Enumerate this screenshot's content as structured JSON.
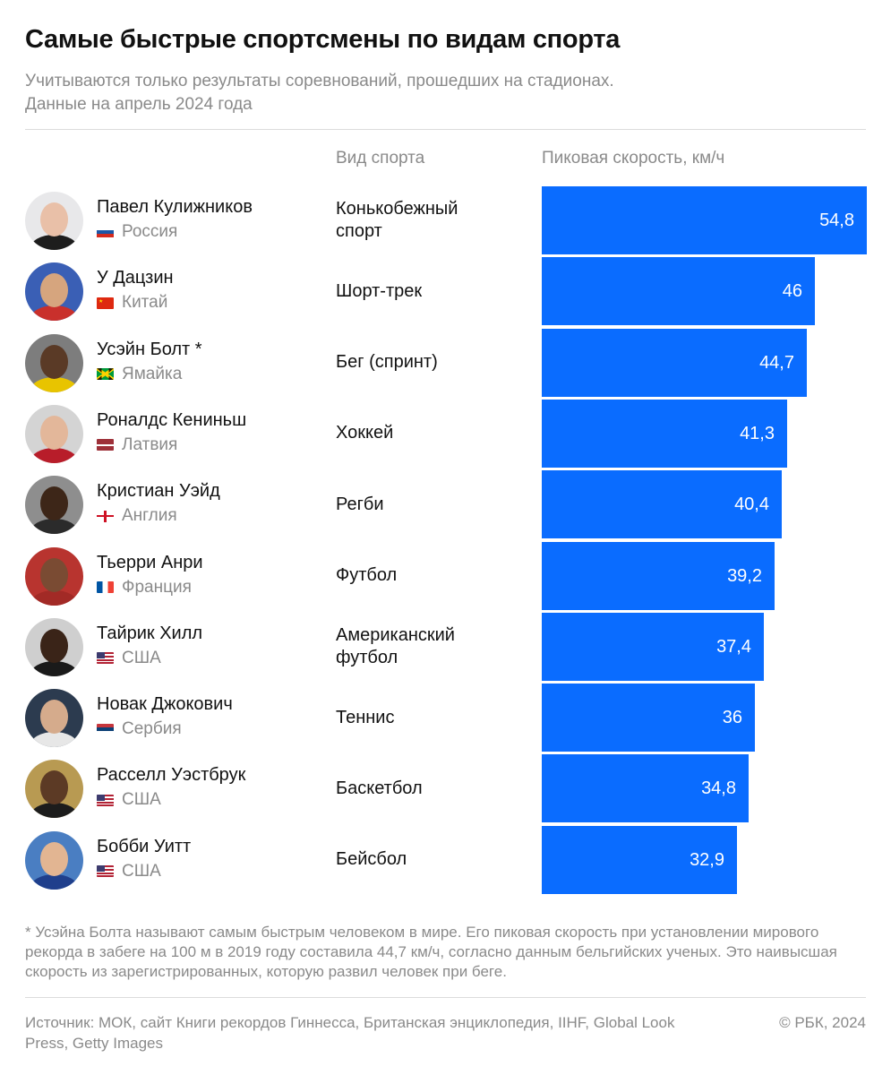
{
  "header": {
    "title": "Самые быстрые спортсмены по видам спорта",
    "subtitle_line1": "Учитываются только результаты соревнований, прошедших на стадионах.",
    "subtitle_line2": "Данные на апрель 2024 года"
  },
  "columns": {
    "sport": "Вид спорта",
    "speed": "Пиковая скорость, км/ч"
  },
  "colors": {
    "bar": "#0a6cff",
    "muted_text": "#8a8a8a"
  },
  "chart_data": {
    "type": "bar",
    "orientation": "horizontal",
    "title": "Самые быстрые спортсмены по видам спорта",
    "xlabel": "Пиковая скорость, км/ч",
    "categories": [
      "Павел Кулижников",
      "У Дацзин",
      "Усэйн Болт *",
      "Роналдс Кениньш",
      "Кристиан Уэйд",
      "Тьерри Анри",
      "Тайрик Хилл",
      "Новак Джокович",
      "Расселл Уэстбрук",
      "Бобби Уитт"
    ],
    "values": [
      54.8,
      46,
      44.7,
      41.3,
      40.4,
      39.2,
      37.4,
      36,
      34.8,
      32.9
    ],
    "value_labels": [
      "54,8",
      "46",
      "44,7",
      "41,3",
      "40,4",
      "39,2",
      "37,4",
      "36",
      "34,8",
      "32,9"
    ],
    "xlim": [
      0,
      54.8
    ],
    "grid": false
  },
  "athletes": [
    {
      "name": "Павел Кулижников",
      "country": "Россия",
      "flag": "russia-flag",
      "sport": "Конькобежный спорт",
      "speed_label": "54,8"
    },
    {
      "name": "У Дацзин",
      "country": "Китай",
      "flag": "china-flag",
      "sport": "Шорт-трек",
      "speed_label": "46"
    },
    {
      "name": "Усэйн Болт *",
      "country": "Ямайка",
      "flag": "jamaica-flag",
      "sport": "Бег (спринт)",
      "speed_label": "44,7"
    },
    {
      "name": "Роналдс Кениньш",
      "country": "Латвия",
      "flag": "latvia-flag",
      "sport": "Хоккей",
      "speed_label": "41,3"
    },
    {
      "name": "Кристиан Уэйд",
      "country": "Англия",
      "flag": "england-flag",
      "sport": "Регби",
      "speed_label": "40,4"
    },
    {
      "name": "Тьерри Анри",
      "country": "Франция",
      "flag": "france-flag",
      "sport": "Футбол",
      "speed_label": "39,2"
    },
    {
      "name": "Тайрик Хилл",
      "country": "США",
      "flag": "usa-flag",
      "sport": "Американский футбол",
      "speed_label": "37,4"
    },
    {
      "name": "Новак Джокович",
      "country": "Сербия",
      "flag": "serbia-flag",
      "sport": "Теннис",
      "speed_label": "36"
    },
    {
      "name": "Расселл Уэстбрук",
      "country": "США",
      "flag": "usa-flag",
      "sport": "Баскетбол",
      "speed_label": "34,8"
    },
    {
      "name": "Бобби Уитт",
      "country": "США",
      "flag": "usa-flag",
      "sport": "Бейсбол",
      "speed_label": "32,9"
    }
  ],
  "footnote": "* Усэйна Болта называют самым быстрым человеком в мире. Его пиковая скорость при установлении мирового рекорда в забеге на 100 м в 2019 году составила 44,7 км/ч, согласно данным бельгийских ученых. Это наивысшая скорость из зарегистрированных, которую развил человек при беге.",
  "footer": {
    "source": "Источник: МОК, сайт Книги рекордов Гиннесса, Британская энциклопедия, IIHF, Global Look Press, Getty Images",
    "copyright": "© РБК, 2024"
  }
}
